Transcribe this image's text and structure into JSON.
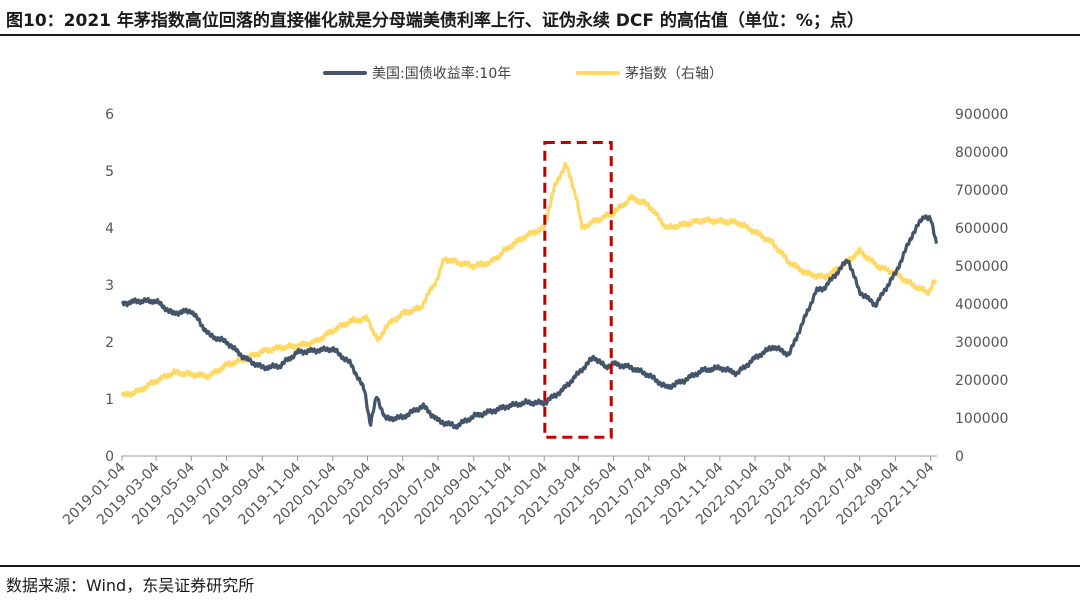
{
  "header": {
    "title": "图10：2021 年茅指数高位回落的直接催化就是分母端美债利率上行、证伪永续 DCF 的高估值（单位：%；点）"
  },
  "footer": {
    "source": "数据来源：Wind，东吴证券研究所"
  },
  "chart_data": {
    "type": "line",
    "title": "",
    "x_ticks": [
      "2019-01-04",
      "2019-03-04",
      "2019-05-04",
      "2019-07-04",
      "2019-09-04",
      "2019-11-04",
      "2020-01-04",
      "2020-03-04",
      "2020-05-04",
      "2020-07-04",
      "2020-09-04",
      "2020-11-04",
      "2021-01-04",
      "2021-03-04",
      "2021-05-04",
      "2021-07-04",
      "2021-09-04",
      "2021-11-04",
      "2022-01-04",
      "2022-03-04",
      "2022-05-04",
      "2022-07-04",
      "2022-09-04",
      "2022-11-04"
    ],
    "y_left": {
      "min": 0,
      "max": 6,
      "ticks": [
        "0",
        "1",
        "2",
        "3",
        "4",
        "5",
        "6"
      ]
    },
    "y_right": {
      "min": 0,
      "max": 900000,
      "ticks": [
        "0",
        "100000",
        "200000",
        "300000",
        "400000",
        "500000",
        "600000",
        "700000",
        "800000",
        "900000"
      ]
    },
    "legend_position": "top-center",
    "grid": false,
    "series": [
      {
        "name": "美国:国债收益率:10年",
        "axis": "left",
        "color": "#44546a",
        "points": [
          [
            "2019-01-04",
            2.67
          ],
          [
            "2019-02-01",
            2.72
          ],
          [
            "2019-03-04",
            2.72
          ],
          [
            "2019-04-01",
            2.5
          ],
          [
            "2019-05-04",
            2.55
          ],
          [
            "2019-06-04",
            2.12
          ],
          [
            "2019-07-04",
            2.0
          ],
          [
            "2019-08-04",
            1.72
          ],
          [
            "2019-09-04",
            1.55
          ],
          [
            "2019-10-04",
            1.58
          ],
          [
            "2019-11-04",
            1.82
          ],
          [
            "2019-12-04",
            1.85
          ],
          [
            "2020-01-04",
            1.88
          ],
          [
            "2020-02-04",
            1.62
          ],
          [
            "2020-02-28",
            1.15
          ],
          [
            "2020-03-09",
            0.55
          ],
          [
            "2020-03-20",
            1.05
          ],
          [
            "2020-04-04",
            0.65
          ],
          [
            "2020-05-04",
            0.68
          ],
          [
            "2020-06-08",
            0.88
          ],
          [
            "2020-07-04",
            0.62
          ],
          [
            "2020-08-04",
            0.52
          ],
          [
            "2020-09-04",
            0.7
          ],
          [
            "2020-10-04",
            0.78
          ],
          [
            "2020-11-04",
            0.88
          ],
          [
            "2020-12-04",
            0.94
          ],
          [
            "2021-01-04",
            0.93
          ],
          [
            "2021-02-04",
            1.15
          ],
          [
            "2021-03-04",
            1.45
          ],
          [
            "2021-03-31",
            1.74
          ],
          [
            "2021-04-20",
            1.56
          ],
          [
            "2021-05-04",
            1.62
          ],
          [
            "2021-06-04",
            1.55
          ],
          [
            "2021-07-04",
            1.42
          ],
          [
            "2021-08-04",
            1.2
          ],
          [
            "2021-09-04",
            1.33
          ],
          [
            "2021-10-04",
            1.5
          ],
          [
            "2021-11-04",
            1.55
          ],
          [
            "2021-12-04",
            1.45
          ],
          [
            "2022-01-04",
            1.72
          ],
          [
            "2022-02-04",
            1.92
          ],
          [
            "2022-03-04",
            1.78
          ],
          [
            "2022-03-28",
            2.35
          ],
          [
            "2022-04-20",
            2.9
          ],
          [
            "2022-05-04",
            2.95
          ],
          [
            "2022-06-14",
            3.45
          ],
          [
            "2022-07-04",
            2.88
          ],
          [
            "2022-08-01",
            2.65
          ],
          [
            "2022-08-25",
            3.05
          ],
          [
            "2022-09-04",
            3.2
          ],
          [
            "2022-10-04",
            3.9
          ],
          [
            "2022-10-24",
            4.22
          ],
          [
            "2022-11-04",
            4.15
          ],
          [
            "2022-11-15",
            3.7
          ]
        ]
      },
      {
        "name": "茅指数（右轴）",
        "axis": "right",
        "color": "#ffd966",
        "points": [
          [
            "2019-01-04",
            158000
          ],
          [
            "2019-02-01",
            170000
          ],
          [
            "2019-03-04",
            198000
          ],
          [
            "2019-04-04",
            220000
          ],
          [
            "2019-05-04",
            215000
          ],
          [
            "2019-06-04",
            210000
          ],
          [
            "2019-07-04",
            240000
          ],
          [
            "2019-08-04",
            255000
          ],
          [
            "2019-09-04",
            275000
          ],
          [
            "2019-10-04",
            285000
          ],
          [
            "2019-11-04",
            290000
          ],
          [
            "2019-12-04",
            300000
          ],
          [
            "2020-01-04",
            330000
          ],
          [
            "2020-02-04",
            355000
          ],
          [
            "2020-03-04",
            362000
          ],
          [
            "2020-03-23",
            300000
          ],
          [
            "2020-04-04",
            340000
          ],
          [
            "2020-05-04",
            375000
          ],
          [
            "2020-06-04",
            390000
          ],
          [
            "2020-07-04",
            470000
          ],
          [
            "2020-07-15",
            520000
          ],
          [
            "2020-08-04",
            510000
          ],
          [
            "2020-09-04",
            500000
          ],
          [
            "2020-10-04",
            510000
          ],
          [
            "2020-11-04",
            550000
          ],
          [
            "2020-12-04",
            580000
          ],
          [
            "2021-01-04",
            600000
          ],
          [
            "2021-01-20",
            700000
          ],
          [
            "2021-02-10",
            770000
          ],
          [
            "2021-03-01",
            680000
          ],
          [
            "2021-03-10",
            600000
          ],
          [
            "2021-04-04",
            620000
          ],
          [
            "2021-05-04",
            640000
          ],
          [
            "2021-06-04",
            680000
          ],
          [
            "2021-07-04",
            660000
          ],
          [
            "2021-08-04",
            600000
          ],
          [
            "2021-09-04",
            610000
          ],
          [
            "2021-10-04",
            620000
          ],
          [
            "2021-11-04",
            618000
          ],
          [
            "2021-12-04",
            615000
          ],
          [
            "2022-01-04",
            590000
          ],
          [
            "2022-02-04",
            560000
          ],
          [
            "2022-03-04",
            510000
          ],
          [
            "2022-04-04",
            480000
          ],
          [
            "2022-05-04",
            470000
          ],
          [
            "2022-06-04",
            500000
          ],
          [
            "2022-07-04",
            540000
          ],
          [
            "2022-08-04",
            500000
          ],
          [
            "2022-09-04",
            480000
          ],
          [
            "2022-10-04",
            450000
          ],
          [
            "2022-10-31",
            430000
          ],
          [
            "2022-11-10",
            460000
          ],
          [
            "2022-11-15",
            450000
          ]
        ]
      }
    ],
    "annotation": {
      "type": "dashed-rectangle",
      "color": "#c00000",
      "x_start": "2021-01-05",
      "x_end": "2021-04-30",
      "y_left_top": 5.5,
      "y_left_bottom": 0.33
    }
  }
}
